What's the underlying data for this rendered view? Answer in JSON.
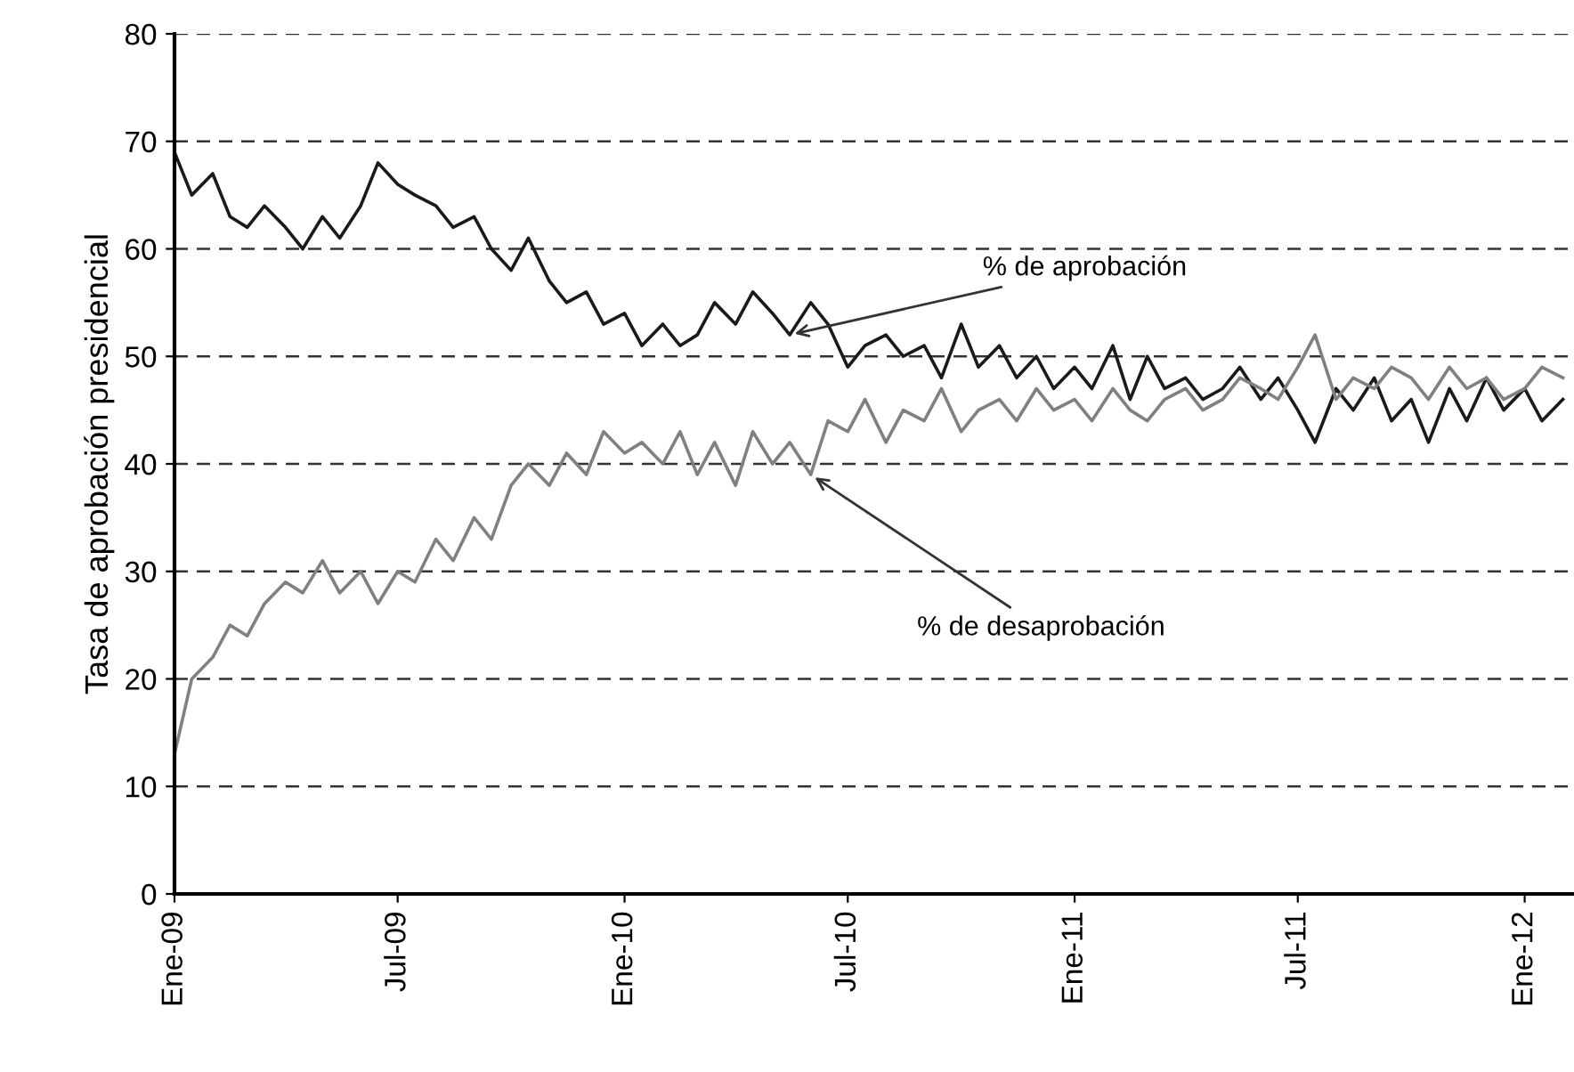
{
  "chart_data": {
    "type": "line",
    "ylabel": "Tasa de aprobación presidencial",
    "x": [
      "2009-01-01",
      "2009-01-15",
      "2009-02-01",
      "2009-02-15",
      "2009-03-01",
      "2009-03-15",
      "2009-04-01",
      "2009-04-15",
      "2009-05-01",
      "2009-05-15",
      "2009-06-01",
      "2009-06-15",
      "2009-07-01",
      "2009-07-15",
      "2009-08-01",
      "2009-08-15",
      "2009-09-01",
      "2009-09-15",
      "2009-10-01",
      "2009-10-15",
      "2009-11-01",
      "2009-11-15",
      "2009-12-01",
      "2009-12-15",
      "2010-01-01",
      "2010-01-15",
      "2010-02-01",
      "2010-02-15",
      "2010-03-01",
      "2010-03-15",
      "2010-04-01",
      "2010-04-15",
      "2010-05-01",
      "2010-05-15",
      "2010-06-01",
      "2010-06-15",
      "2010-07-01",
      "2010-07-15",
      "2010-08-01",
      "2010-08-15",
      "2010-09-01",
      "2010-09-15",
      "2010-10-01",
      "2010-10-15",
      "2010-11-01",
      "2010-11-15",
      "2010-12-01",
      "2010-12-15",
      "2011-01-01",
      "2011-01-15",
      "2011-02-01",
      "2011-02-15",
      "2011-03-01",
      "2011-03-15",
      "2011-04-01",
      "2011-04-15",
      "2011-05-01",
      "2011-05-15",
      "2011-06-01",
      "2011-06-15",
      "2011-07-01",
      "2011-07-15",
      "2011-08-01",
      "2011-08-15",
      "2011-09-01",
      "2011-09-15",
      "2011-10-01",
      "2011-10-15",
      "2011-11-01",
      "2011-11-15",
      "2011-12-01",
      "2011-12-15",
      "2012-01-01",
      "2012-01-15",
      "2012-02-01"
    ],
    "series": [
      {
        "color": "#1a1a1a",
        "values": [
          69,
          65,
          67,
          63,
          62,
          64,
          62,
          60,
          63,
          61,
          64,
          68,
          66,
          65,
          64,
          62,
          63,
          60,
          58,
          61,
          57,
          55,
          56,
          53,
          54,
          51,
          53,
          51,
          52,
          55,
          53,
          56,
          54,
          52,
          55,
          53,
          49,
          51,
          52,
          50,
          51,
          48,
          53,
          49,
          51,
          48,
          50,
          47,
          49,
          47,
          51,
          46,
          50,
          47,
          48,
          46,
          47,
          49,
          46,
          48,
          45,
          42,
          47,
          45,
          48,
          44,
          46,
          42,
          47,
          44,
          48,
          45,
          47,
          44,
          46
        ]
      },
      {
        "color": "#808080",
        "values": [
          13,
          20,
          22,
          25,
          24,
          27,
          29,
          28,
          31,
          28,
          30,
          27,
          30,
          29,
          33,
          31,
          35,
          33,
          38,
          40,
          38,
          41,
          39,
          43,
          41,
          42,
          40,
          43,
          39,
          42,
          38,
          43,
          40,
          42,
          39,
          44,
          43,
          46,
          42,
          45,
          44,
          47,
          43,
          45,
          46,
          44,
          47,
          45,
          46,
          44,
          47,
          45,
          44,
          46,
          47,
          45,
          46,
          48,
          47,
          46,
          49,
          52,
          46,
          48,
          47,
          49,
          48,
          46,
          49,
          47,
          48,
          46,
          47,
          49,
          48
        ]
      }
    ],
    "xlim": [
      "2009-01-01",
      "2012-02-10"
    ],
    "xticks": [
      {
        "value": "2009-01-01",
        "label": "Ene-09"
      },
      {
        "value": "2009-07-01",
        "label": "Jul-09"
      },
      {
        "value": "2010-01-01",
        "label": "Ene-10"
      },
      {
        "value": "2010-07-01",
        "label": "Jul-10"
      },
      {
        "value": "2011-01-01",
        "label": "Ene-11"
      },
      {
        "value": "2011-07-01",
        "label": "Jul-11"
      },
      {
        "value": "2012-01-01",
        "label": "Ene-12"
      }
    ],
    "ylim": [
      0,
      80
    ],
    "yticks": [
      0,
      10,
      20,
      30,
      40,
      50,
      60,
      70,
      80
    ],
    "grid": "y",
    "line_style": "solid",
    "marker": "none",
    "legend": false,
    "annotations": [
      {
        "text": "% de aprobación",
        "x": "2010-05-15",
        "y": 52
      },
      {
        "text": "% de desaprobación",
        "x": "2010-06-01",
        "y": 39
      }
    ]
  }
}
